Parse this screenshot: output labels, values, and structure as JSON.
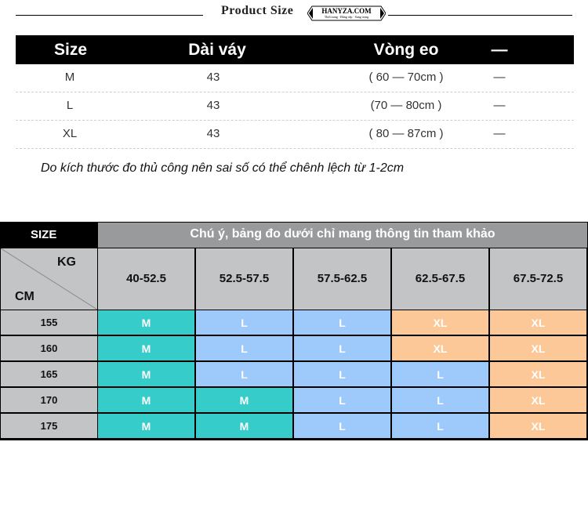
{
  "header": {
    "title": "Product Size",
    "logo": {
      "name": "HANYZA.COM",
      "tagline": "Thời trang · Đẳng cấp · Sang trọng"
    }
  },
  "size_table": {
    "columns": [
      "Size",
      "Dài váy",
      "Vòng eo",
      "—"
    ],
    "rows": [
      {
        "size": "M",
        "length": "43",
        "waist": "( 60 — 70cm )",
        "extra": "—"
      },
      {
        "size": "L",
        "length": "43",
        "waist": "(70 — 80cm )",
        "extra": "—"
      },
      {
        "size": "XL",
        "length": "43",
        "waist": "( 80 — 87cm )",
        "extra": "—"
      }
    ]
  },
  "note": "Do kích thước đo thủ công nên sai số có thể chênh lệch từ 1-2cm",
  "fit_table": {
    "size_label": "SIZE",
    "banner": "Chú ý, bảng đo dưới chỉ mang thông tin tham khảo",
    "kg_label": "KG",
    "cm_label": "CM",
    "weights": [
      "40-52.5",
      "52.5-57.5",
      "57.5-62.5",
      "62.5-67.5",
      "67.5-72.5"
    ],
    "heights": [
      "155",
      "160",
      "165",
      "170",
      "175"
    ],
    "grid": [
      [
        "M",
        "L",
        "L",
        "XL",
        "XL"
      ],
      [
        "M",
        "L",
        "L",
        "XL",
        "XL"
      ],
      [
        "M",
        "L",
        "L",
        "L",
        "XL"
      ],
      [
        "M",
        "M",
        "L",
        "L",
        "XL"
      ],
      [
        "M",
        "M",
        "L",
        "L",
        "XL"
      ]
    ],
    "colors": {
      "M": "#35ccca",
      "L": "#9ec9fb",
      "XL": "#fdc898",
      "header_bg": "#c3c4c6",
      "banner_bg": "#999a9c"
    }
  }
}
